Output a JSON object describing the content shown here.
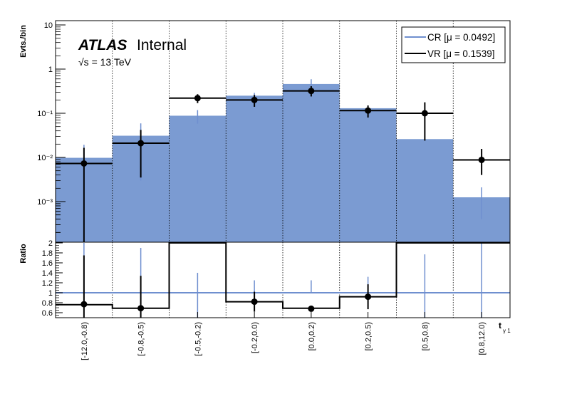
{
  "chart_data": {
    "type": "bar",
    "categories": [
      "[-12.0,-0.8)",
      "[-0.8,-0.5)",
      "[-0.5,-0.2)",
      "[-0.2,0.0)",
      "[0.0,0.2)",
      "[0.2,0.5)",
      "[0.5,0.8)",
      "[0.8,12.0)"
    ],
    "top_panel": {
      "ylabel": "Evts./bin",
      "yscale": "log",
      "ylim": [
        0.00014,
        10
      ],
      "tick_labels": [
        "10",
        "1",
        "10⁻¹",
        "10⁻²",
        "10⁻³"
      ],
      "series": [
        {
          "name": "CR [μ = 0.0492]",
          "style": "filled-histogram",
          "values": [
            0.0098,
            0.031,
            0.088,
            0.25,
            0.46,
            0.13,
            0.026,
            0.00125
          ],
          "errors": [
            0.0095,
            0.028,
            0.03,
            0.04,
            0.13,
            0.02,
            0.0,
            0.00085
          ]
        },
        {
          "name": "VR [μ = 0.1539]",
          "style": "points-with-errors",
          "values": [
            0.0073,
            0.021,
            0.22,
            0.2,
            0.32,
            0.115,
            0.1,
            0.0088
          ],
          "err_low": [
            0.0072,
            0.0175,
            0.05,
            0.06,
            0.08,
            0.035,
            0.076,
            0.0048
          ],
          "err_high": [
            0.0092,
            0.021,
            0.05,
            0.06,
            0.09,
            0.035,
            0.077,
            0.0068
          ]
        }
      ]
    },
    "ratio_panel": {
      "ylabel": "Ratio",
      "ylim": [
        0.5,
        2.0
      ],
      "tick_labels": [
        "2",
        "1.8",
        "1.6",
        "1.4",
        "1.2",
        "1",
        "0.8",
        "0.6"
      ],
      "reference": 1.0,
      "ratio_values": [
        0.76,
        0.69,
        2.0,
        0.82,
        0.69,
        0.92,
        2.0,
        2.0
      ],
      "points": [
        0.77,
        0.69,
        null,
        0.82,
        0.68,
        0.92,
        null,
        null
      ],
      "point_err_low": [
        0.3,
        0.3,
        null,
        0.2,
        0.0,
        0.25,
        null,
        null
      ],
      "point_err_high": [
        0.98,
        0.65,
        null,
        0.2,
        0.0,
        0.25,
        null,
        null
      ],
      "cr_err_low": [
        0.2,
        0.5,
        0.7,
        0.0,
        0.0,
        0.0,
        0.5,
        0.5
      ],
      "cr_err_high": [
        1.4,
        0.9,
        0.4,
        0.25,
        0.25,
        0.32,
        0.77,
        1.0
      ]
    },
    "xlabel": "t",
    "xlabel_sub": "γ 1",
    "legend": {
      "placement": "top-right"
    },
    "atlas_label": "ATLAS",
    "atlas_status": "Internal",
    "energy_label": "√s = 13 TeV",
    "colors": {
      "cr_fill": "#7b9bd2",
      "cr_line": "#6f8fcf",
      "vr": "#000000"
    },
    "grid": {
      "vertical": "dotted",
      "horizontal": "none"
    }
  }
}
